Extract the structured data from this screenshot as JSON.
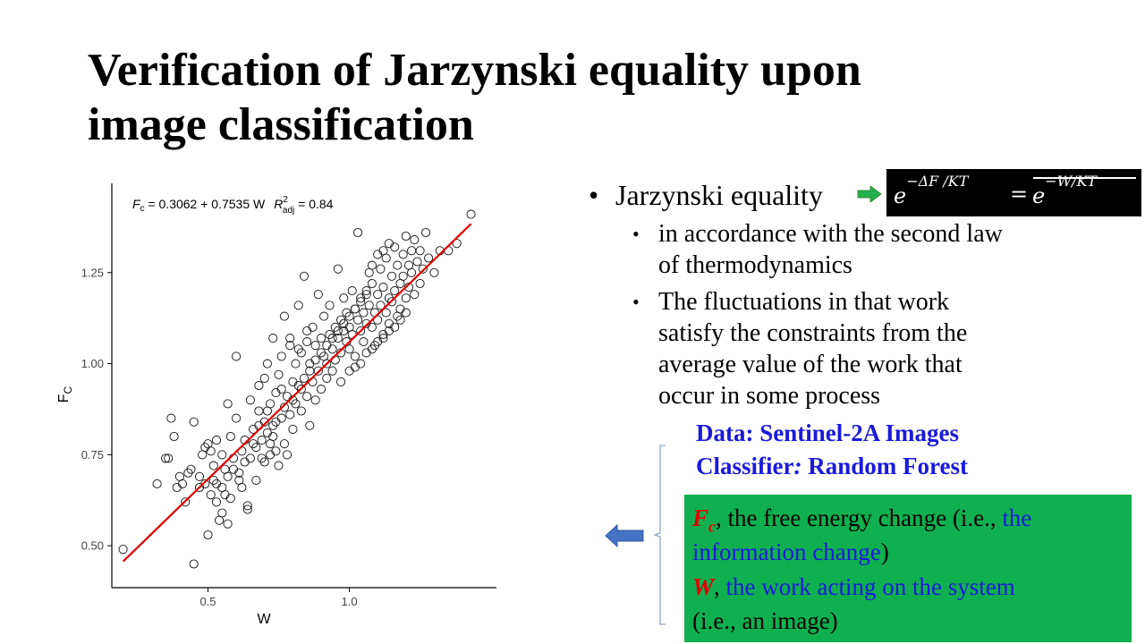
{
  "slide": {
    "title_line1": "Verification of Jarzynski equality upon",
    "title_line2": "image classification"
  },
  "bullets": {
    "main_dot": "•",
    "main_label": "Jarzynski equality",
    "formula": {
      "lhs_base": "e",
      "lhs_exp": "−ΔF /KT",
      "equals": "=",
      "rhs_base": "e",
      "rhs_exp": "−W/KT"
    },
    "sub_dot": "•",
    "sub1": [
      "in accordance with the second law",
      "of thermodynamics"
    ],
    "sub2": [
      "The fluctuations in that work",
      "satisfy the constraints from the",
      "average value of the work that",
      "occur in some process"
    ]
  },
  "data_info": {
    "line1": "Data: Sentinel-2A Images",
    "line2_a": "Classifier",
    "line2_colon": ":",
    "line2_b": " Random Forest"
  },
  "legend_box": {
    "fc_sym": "F",
    "fc_sub": "c",
    "fc_text1": ", the free energy change (i.e., ",
    "fc_text2": "the",
    "fc_text3": "information change",
    "fc_text4": ")",
    "w_sym": "W",
    "w_text1": ", ",
    "w_text2": "the work acting on the system",
    "w_text3": "(i.e., an image)"
  },
  "colors": {
    "accent_blue": "#1a1adb",
    "accent_red": "#e00000",
    "box_green": "#10b050",
    "arrow_green": "#22b04c",
    "arrow_blue": "#4472c4"
  },
  "chart_data": {
    "type": "scatter",
    "xlabel": "W",
    "ylabel_main": "F",
    "ylabel_sub": "C",
    "x_ticks": [
      0.5,
      1.0
    ],
    "x_tick_labels": [
      "0.5",
      "1.0"
    ],
    "y_ticks": [
      0.5,
      0.75,
      1.0,
      1.25
    ],
    "y_tick_labels": [
      "0.50",
      "0.75",
      "1.00",
      "1.25"
    ],
    "xlim": [
      0.16,
      1.52
    ],
    "ylim": [
      0.385,
      1.495
    ],
    "regression": {
      "intercept": 0.3062,
      "slope": 0.7535,
      "x_range": [
        0.2,
        1.43
      ],
      "color": "#e00000"
    },
    "annotation": {
      "lhs_main": "F",
      "lhs_sub": "c",
      "equation": " = 0.3062 + 0.7535 W",
      "r2_main": "R",
      "r2_sup": "2",
      "r2_sub": "adj",
      "r2_value": " = 0.84"
    },
    "points_xy": [
      [
        0.2,
        0.49
      ],
      [
        0.32,
        0.67
      ],
      [
        0.35,
        0.74
      ],
      [
        0.37,
        0.85
      ],
      [
        0.38,
        0.8
      ],
      [
        0.36,
        0.74
      ],
      [
        0.39,
        0.66
      ],
      [
        0.4,
        0.69
      ],
      [
        0.43,
        0.7
      ],
      [
        0.44,
        0.71
      ],
      [
        0.45,
        0.45
      ],
      [
        0.45,
        0.84
      ],
      [
        0.47,
        0.66
      ],
      [
        0.48,
        0.75
      ],
      [
        0.49,
        0.67
      ],
      [
        0.49,
        0.77
      ],
      [
        0.5,
        0.78
      ],
      [
        0.5,
        0.53
      ],
      [
        0.51,
        0.76
      ],
      [
        0.52,
        0.72
      ],
      [
        0.52,
        0.68
      ],
      [
        0.53,
        0.79
      ],
      [
        0.53,
        0.67
      ],
      [
        0.54,
        0.57
      ],
      [
        0.55,
        0.59
      ],
      [
        0.55,
        0.75
      ],
      [
        0.56,
        0.71
      ],
      [
        0.56,
        0.64
      ],
      [
        0.57,
        0.56
      ],
      [
        0.57,
        0.89
      ],
      [
        0.58,
        0.63
      ],
      [
        0.58,
        0.8
      ],
      [
        0.59,
        0.74
      ],
      [
        0.6,
        1.02
      ],
      [
        0.6,
        0.85
      ],
      [
        0.61,
        0.7
      ],
      [
        0.62,
        0.76
      ],
      [
        0.62,
        0.66
      ],
      [
        0.63,
        0.79
      ],
      [
        0.64,
        0.61
      ],
      [
        0.64,
        0.6
      ],
      [
        0.65,
        0.9
      ],
      [
        0.65,
        0.74
      ],
      [
        0.66,
        0.82
      ],
      [
        0.67,
        0.77
      ],
      [
        0.67,
        0.68
      ],
      [
        0.68,
        0.83
      ],
      [
        0.68,
        0.94
      ],
      [
        0.69,
        0.74
      ],
      [
        0.7,
        0.73
      ],
      [
        0.7,
        0.96
      ],
      [
        0.71,
        1.0
      ],
      [
        0.71,
        0.87
      ],
      [
        0.72,
        0.78
      ],
      [
        0.72,
        0.75
      ],
      [
        0.73,
        1.07
      ],
      [
        0.73,
        0.8
      ],
      [
        0.74,
        0.84
      ],
      [
        0.74,
        0.76
      ],
      [
        0.75,
        0.97
      ],
      [
        0.75,
        0.72
      ],
      [
        0.76,
        0.93
      ],
      [
        0.76,
        0.85
      ],
      [
        0.77,
        0.78
      ],
      [
        0.77,
        1.13
      ],
      [
        0.78,
        0.91
      ],
      [
        0.78,
        0.75
      ],
      [
        0.79,
        1.05
      ],
      [
        0.79,
        0.86
      ],
      [
        0.8,
        0.95
      ],
      [
        0.8,
        0.82
      ],
      [
        0.81,
        1.0
      ],
      [
        0.81,
        0.89
      ],
      [
        0.82,
        1.16
      ],
      [
        0.82,
        0.94
      ],
      [
        0.83,
        1.03
      ],
      [
        0.83,
        0.87
      ],
      [
        0.84,
        1.24
      ],
      [
        0.84,
        0.96
      ],
      [
        0.85,
        1.06
      ],
      [
        0.85,
        0.91
      ],
      [
        0.86,
        0.83
      ],
      [
        0.86,
        1.0
      ],
      [
        0.87,
        1.1
      ],
      [
        0.87,
        0.95
      ],
      [
        0.88,
        1.05
      ],
      [
        0.88,
        0.9
      ],
      [
        0.89,
        1.19
      ],
      [
        0.89,
        0.98
      ],
      [
        0.9,
        1.07
      ],
      [
        0.9,
        0.93
      ],
      [
        0.91,
        1.02
      ],
      [
        0.91,
        1.13
      ],
      [
        0.92,
        1.0
      ],
      [
        0.92,
        0.96
      ],
      [
        0.93,
        1.08
      ],
      [
        0.93,
        1.16
      ],
      [
        0.94,
        1.04
      ],
      [
        0.94,
        0.98
      ],
      [
        0.95,
        1.1
      ],
      [
        0.95,
        1.01
      ],
      [
        0.96,
        1.26
      ],
      [
        0.96,
        1.07
      ],
      [
        0.97,
        1.12
      ],
      [
        0.97,
        1.03
      ],
      [
        0.98,
        1.09
      ],
      [
        0.98,
        1.18
      ],
      [
        0.99,
        1.06
      ],
      [
        0.99,
        1.14
      ],
      [
        1.0,
        1.04
      ],
      [
        1.0,
        1.1
      ],
      [
        1.01,
        1.2
      ],
      [
        1.01,
        1.08
      ],
      [
        1.02,
        1.15
      ],
      [
        1.02,
        1.02
      ],
      [
        1.03,
        1.12
      ],
      [
        1.03,
        1.36
      ],
      [
        1.04,
        1.09
      ],
      [
        1.04,
        1.18
      ],
      [
        1.05,
        1.14
      ],
      [
        1.05,
        1.06
      ],
      [
        1.06,
        1.2
      ],
      [
        1.06,
        1.11
      ],
      [
        1.07,
        1.25
      ],
      [
        1.07,
        1.16
      ],
      [
        1.08,
        1.1
      ],
      [
        1.08,
        1.22
      ],
      [
        1.09,
        1.14
      ],
      [
        1.09,
        1.05
      ],
      [
        1.1,
        1.19
      ],
      [
        1.1,
        1.12
      ],
      [
        1.11,
        1.26
      ],
      [
        1.11,
        1.16
      ],
      [
        1.12,
        1.08
      ],
      [
        1.12,
        1.21
      ],
      [
        1.13,
        1.14
      ],
      [
        1.13,
        1.29
      ],
      [
        1.14,
        1.18
      ],
      [
        1.14,
        1.11
      ],
      [
        1.15,
        1.24
      ],
      [
        1.15,
        1.17
      ],
      [
        1.16,
        1.32
      ],
      [
        1.16,
        1.2
      ],
      [
        1.17,
        1.13
      ],
      [
        1.17,
        1.27
      ],
      [
        1.18,
        1.22
      ],
      [
        1.18,
        1.15
      ],
      [
        1.19,
        1.3
      ],
      [
        1.19,
        1.24
      ],
      [
        1.2,
        1.18
      ],
      [
        1.2,
        1.35
      ],
      [
        1.21,
        1.27
      ],
      [
        1.21,
        1.21
      ],
      [
        1.22,
        1.31
      ],
      [
        1.22,
        1.25
      ],
      [
        1.23,
        1.19
      ],
      [
        1.23,
        1.34
      ],
      [
        1.24,
        1.28
      ],
      [
        1.25,
        1.22
      ],
      [
        1.25,
        1.31
      ],
      [
        1.26,
        1.26
      ],
      [
        1.27,
        1.36
      ],
      [
        1.28,
        1.29
      ],
      [
        1.3,
        1.25
      ],
      [
        1.32,
        1.31
      ],
      [
        1.35,
        1.31
      ],
      [
        1.38,
        1.33
      ],
      [
        1.43,
        1.41
      ],
      [
        0.97,
        0.95
      ],
      [
        1.0,
        0.98
      ],
      [
        1.02,
        0.99
      ],
      [
        1.04,
        1.0
      ],
      [
        1.06,
        1.03
      ],
      [
        1.08,
        1.04
      ],
      [
        1.1,
        1.06
      ],
      [
        1.12,
        1.07
      ],
      [
        1.14,
        1.09
      ],
      [
        1.16,
        1.1
      ],
      [
        1.18,
        1.12
      ],
      [
        1.2,
        1.14
      ],
      [
        0.88,
        1.01
      ],
      [
        0.9,
        1.03
      ],
      [
        0.92,
        1.05
      ],
      [
        0.94,
        1.07
      ],
      [
        0.96,
        1.09
      ],
      [
        0.98,
        1.11
      ],
      [
        1.0,
        1.13
      ],
      [
        1.02,
        1.15
      ],
      [
        1.04,
        1.17
      ],
      [
        1.06,
        1.19
      ],
      [
        1.08,
        1.27
      ],
      [
        1.1,
        1.3
      ],
      [
        1.12,
        1.31
      ],
      [
        1.14,
        1.33
      ],
      [
        0.76,
        1.02
      ],
      [
        0.79,
        1.07
      ],
      [
        0.82,
        1.04
      ],
      [
        0.85,
        1.09
      ],
      [
        0.68,
        0.87
      ],
      [
        0.7,
        0.84
      ],
      [
        0.72,
        0.89
      ],
      [
        0.74,
        0.92
      ],
      [
        0.77,
        0.88
      ],
      [
        0.8,
        0.9
      ],
      [
        0.83,
        0.93
      ],
      [
        0.86,
        0.98
      ],
      [
        0.63,
        0.73
      ],
      [
        0.66,
        0.78
      ],
      [
        0.69,
        0.79
      ],
      [
        0.71,
        0.81
      ],
      [
        0.73,
        0.83
      ],
      [
        0.61,
        0.68
      ],
      [
        0.59,
        0.71
      ],
      [
        0.57,
        0.69
      ],
      [
        0.55,
        0.66
      ],
      [
        0.53,
        0.62
      ],
      [
        0.51,
        0.64
      ],
      [
        0.47,
        0.69
      ],
      [
        0.42,
        0.62
      ],
      [
        0.41,
        0.67
      ]
    ]
  }
}
